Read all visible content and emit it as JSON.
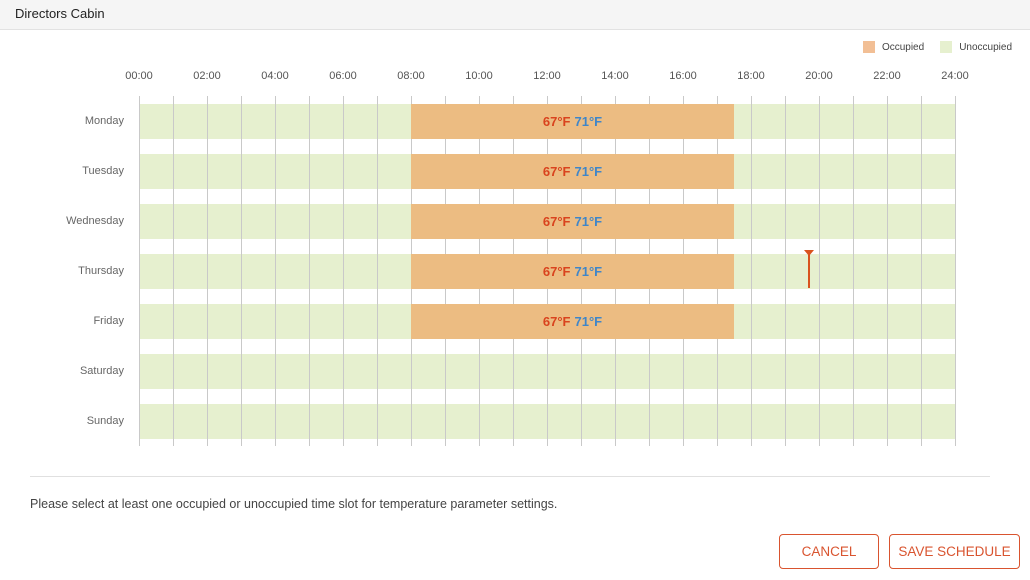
{
  "window": {
    "title": "Directors Cabin"
  },
  "legend": {
    "occupied_label": "Occupied",
    "unoccupied_label": "Unoccupied",
    "occupied_color": "#f2bf95",
    "unoccupied_color": "#e6f0cf"
  },
  "time_axis": [
    "00:00",
    "02:00",
    "04:00",
    "06:00",
    "08:00",
    "10:00",
    "12:00",
    "14:00",
    "16:00",
    "18:00",
    "20:00",
    "22:00",
    "24:00"
  ],
  "days": [
    {
      "label": "Monday",
      "occupied": {
        "start": "08:00",
        "end": "17:30",
        "low": "67°F",
        "high": "71°F"
      }
    },
    {
      "label": "Tuesday",
      "occupied": {
        "start": "08:00",
        "end": "17:30",
        "low": "67°F",
        "high": "71°F"
      }
    },
    {
      "label": "Wednesday",
      "occupied": {
        "start": "08:00",
        "end": "17:30",
        "low": "67°F",
        "high": "71°F"
      }
    },
    {
      "label": "Thursday",
      "occupied": {
        "start": "08:00",
        "end": "17:30",
        "low": "67°F",
        "high": "71°F"
      }
    },
    {
      "label": "Friday",
      "occupied": {
        "start": "08:00",
        "end": "17:30",
        "low": "67°F",
        "high": "71°F"
      }
    },
    {
      "label": "Saturday",
      "occupied": null
    },
    {
      "label": "Sunday",
      "occupied": null
    }
  ],
  "current_time_marker": {
    "day": "Thursday",
    "time": "19:40"
  },
  "notice": "Please select at least one occupied or unoccupied time slot for temperature parameter settings.",
  "buttons": {
    "cancel": "CANCEL",
    "save": "SAVE SCHEDULE"
  },
  "colors": {
    "accent": "#d9542f",
    "low_temp": "#d9431e",
    "high_temp": "#3f86c9"
  }
}
